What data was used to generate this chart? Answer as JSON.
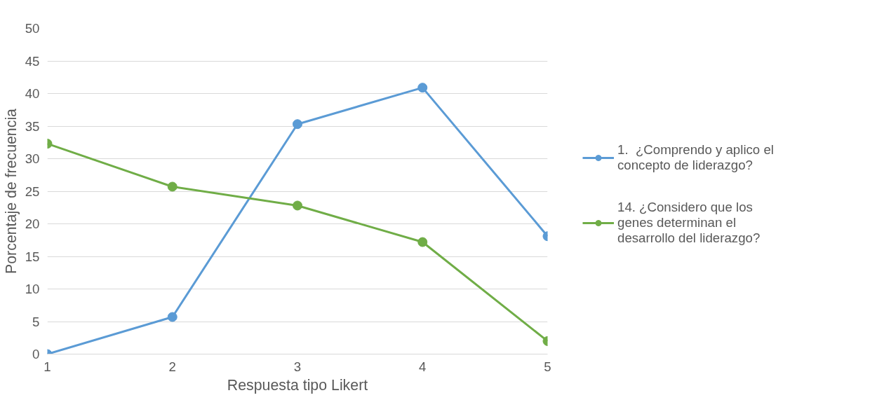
{
  "chart_data": {
    "type": "line",
    "xlabel": "Respuesta tipo Likert",
    "ylabel": "Porcentaje de frecuencia",
    "x": [
      1,
      2,
      3,
      4,
      5
    ],
    "xlim": [
      1,
      5
    ],
    "xticks": [
      1,
      2,
      3,
      4,
      5
    ],
    "ylim": [
      0,
      50
    ],
    "yticks": [
      0,
      5,
      10,
      15,
      20,
      25,
      30,
      35,
      40,
      45,
      50
    ],
    "grid": "y",
    "legend": "right",
    "marker": "circle",
    "line_style": "solid",
    "series": [
      {
        "name": "1.  ¿Comprendo y aplico el concepto de liderazgo?",
        "color": "#5b9bd5",
        "values": [
          0,
          5.7,
          35.3,
          40.9,
          18.1
        ]
      },
      {
        "name": "14. ¿Considero que los genes determinan el  desarrollo del liderazgo?",
        "color": "#70ad47",
        "values": [
          32.3,
          25.7,
          22.8,
          17.2,
          2.0
        ]
      }
    ]
  }
}
